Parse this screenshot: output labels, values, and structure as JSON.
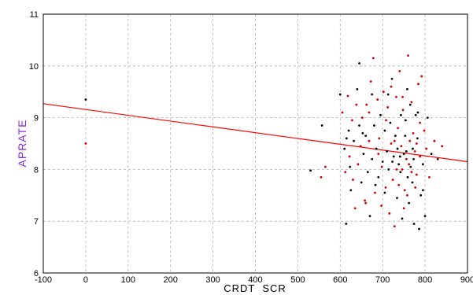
{
  "chart_data": {
    "type": "scatter",
    "xlabel": "CRDT  SCR",
    "ylabel": "APRATE",
    "xlim": [
      -100,
      900
    ],
    "ylim": [
      6,
      11
    ],
    "xticks": [
      -100,
      0,
      100,
      200,
      300,
      400,
      500,
      600,
      700,
      800,
      900
    ],
    "yticks": [
      6,
      7,
      8,
      9,
      10,
      11
    ],
    "grid": true,
    "colors": {
      "points": "#000000",
      "point_highlight": "#cc0000",
      "fit_line": "#ff0000",
      "grid": "#b0b0b0",
      "ylabel": "#8a2be2"
    },
    "fit_line": {
      "x": [
        -100,
        900
      ],
      "y": [
        9.27,
        8.15
      ]
    },
    "points": [
      {
        "x": 0,
        "y": 9.35
      },
      {
        "x": 0,
        "y": 8.5
      },
      {
        "x": 530,
        "y": 7.98
      },
      {
        "x": 555,
        "y": 7.85
      },
      {
        "x": 557,
        "y": 8.85
      },
      {
        "x": 565,
        "y": 8.05
      },
      {
        "x": 600,
        "y": 9.45
      },
      {
        "x": 605,
        "y": 9.1
      },
      {
        "x": 610,
        "y": 8.4
      },
      {
        "x": 612,
        "y": 7.95
      },
      {
        "x": 614,
        "y": 6.95
      },
      {
        "x": 618,
        "y": 9.42
      },
      {
        "x": 620,
        "y": 8.75
      },
      {
        "x": 622,
        "y": 8.25
      },
      {
        "x": 625,
        "y": 7.6
      },
      {
        "x": 628,
        "y": 8.95
      },
      {
        "x": 632,
        "y": 8.55
      },
      {
        "x": 635,
        "y": 7.25
      },
      {
        "x": 640,
        "y": 9.55
      },
      {
        "x": 642,
        "y": 8.1
      },
      {
        "x": 645,
        "y": 10.05
      },
      {
        "x": 648,
        "y": 8.45
      },
      {
        "x": 650,
        "y": 7.75
      },
      {
        "x": 652,
        "y": 9.0
      },
      {
        "x": 655,
        "y": 8.3
      },
      {
        "x": 658,
        "y": 7.4
      },
      {
        "x": 660,
        "y": 8.65
      },
      {
        "x": 662,
        "y": 9.25
      },
      {
        "x": 665,
        "y": 7.95
      },
      {
        "x": 668,
        "y": 8.55
      },
      {
        "x": 670,
        "y": 7.1
      },
      {
        "x": 672,
        "y": 9.7
      },
      {
        "x": 675,
        "y": 8.2
      },
      {
        "x": 678,
        "y": 10.15
      },
      {
        "x": 680,
        "y": 8.85
      },
      {
        "x": 682,
        "y": 7.55
      },
      {
        "x": 685,
        "y": 8.4
      },
      {
        "x": 688,
        "y": 9.35
      },
      {
        "x": 690,
        "y": 7.85
      },
      {
        "x": 692,
        "y": 8.6
      },
      {
        "x": 695,
        "y": 9.05
      },
      {
        "x": 697,
        "y": 7.3
      },
      {
        "x": 700,
        "y": 8.15
      },
      {
        "x": 702,
        "y": 9.5
      },
      {
        "x": 705,
        "y": 8.75
      },
      {
        "x": 707,
        "y": 7.65
      },
      {
        "x": 710,
        "y": 8.35
      },
      {
        "x": 712,
        "y": 9.2
      },
      {
        "x": 714,
        "y": 8.0
      },
      {
        "x": 716,
        "y": 7.15
      },
      {
        "x": 718,
        "y": 8.9
      },
      {
        "x": 720,
        "y": 8.5
      },
      {
        "x": 722,
        "y": 9.75
      },
      {
        "x": 724,
        "y": 7.8
      },
      {
        "x": 726,
        "y": 8.25
      },
      {
        "x": 728,
        "y": 6.9
      },
      {
        "x": 730,
        "y": 8.65
      },
      {
        "x": 732,
        "y": 9.4
      },
      {
        "x": 734,
        "y": 7.45
      },
      {
        "x": 736,
        "y": 8.8
      },
      {
        "x": 738,
        "y": 8.1
      },
      {
        "x": 740,
        "y": 9.9
      },
      {
        "x": 742,
        "y": 7.95
      },
      {
        "x": 744,
        "y": 8.45
      },
      {
        "x": 746,
        "y": 7.05
      },
      {
        "x": 748,
        "y": 9.15
      },
      {
        "x": 750,
        "y": 8.3
      },
      {
        "x": 752,
        "y": 7.6
      },
      {
        "x": 754,
        "y": 8.95
      },
      {
        "x": 756,
        "y": 8.2
      },
      {
        "x": 758,
        "y": 9.55
      },
      {
        "x": 760,
        "y": 10.2
      },
      {
        "x": 762,
        "y": 7.35
      },
      {
        "x": 764,
        "y": 8.55
      },
      {
        "x": 766,
        "y": 8.05
      },
      {
        "x": 768,
        "y": 9.3
      },
      {
        "x": 770,
        "y": 7.75
      },
      {
        "x": 772,
        "y": 8.7
      },
      {
        "x": 774,
        "y": 6.95
      },
      {
        "x": 776,
        "y": 8.35
      },
      {
        "x": 778,
        "y": 9.05
      },
      {
        "x": 780,
        "y": 7.9
      },
      {
        "x": 782,
        "y": 8.6
      },
      {
        "x": 784,
        "y": 9.65
      },
      {
        "x": 786,
        "y": 6.85
      },
      {
        "x": 788,
        "y": 8.25
      },
      {
        "x": 790,
        "y": 7.5
      },
      {
        "x": 792,
        "y": 9.8
      },
      {
        "x": 795,
        "y": 8.1
      },
      {
        "x": 798,
        "y": 8.75
      },
      {
        "x": 800,
        "y": 7.1
      },
      {
        "x": 803,
        "y": 8.4
      },
      {
        "x": 806,
        "y": 9.0
      },
      {
        "x": 810,
        "y": 7.85
      },
      {
        "x": 815,
        "y": 8.3
      },
      {
        "x": 822,
        "y": 8.55
      },
      {
        "x": 830,
        "y": 8.2
      },
      {
        "x": 840,
        "y": 8.45
      },
      {
        "x": 615,
        "y": 8.6
      },
      {
        "x": 630,
        "y": 7.8
      },
      {
        "x": 645,
        "y": 8.85
      },
      {
        "x": 660,
        "y": 7.35
      },
      {
        "x": 675,
        "y": 9.45
      },
      {
        "x": 690,
        "y": 8.3
      },
      {
        "x": 705,
        "y": 7.55
      },
      {
        "x": 720,
        "y": 9.6
      },
      {
        "x": 735,
        "y": 8.4
      },
      {
        "x": 750,
        "y": 7.25
      },
      {
        "x": 765,
        "y": 9.25
      },
      {
        "x": 780,
        "y": 8.5
      },
      {
        "x": 795,
        "y": 7.6
      },
      {
        "x": 708,
        "y": 8.95
      },
      {
        "x": 723,
        "y": 8.15
      },
      {
        "x": 738,
        "y": 7.7
      },
      {
        "x": 753,
        "y": 8.65
      },
      {
        "x": 768,
        "y": 7.95
      },
      {
        "x": 783,
        "y": 9.1
      },
      {
        "x": 698,
        "y": 8.05
      },
      {
        "x": 713,
        "y": 9.45
      },
      {
        "x": 728,
        "y": 8.55
      },
      {
        "x": 743,
        "y": 9.05
      },
      {
        "x": 758,
        "y": 7.5
      },
      {
        "x": 773,
        "y": 8.2
      },
      {
        "x": 788,
        "y": 8.9
      },
      {
        "x": 683,
        "y": 7.7
      },
      {
        "x": 668,
        "y": 9.1
      },
      {
        "x": 653,
        "y": 8.7
      },
      {
        "x": 638,
        "y": 9.25
      },
      {
        "x": 623,
        "y": 8.05
      },
      {
        "x": 746,
        "y": 8.0
      },
      {
        "x": 756,
        "y": 8.35
      },
      {
        "x": 762,
        "y": 8.1
      },
      {
        "x": 741,
        "y": 8.25
      },
      {
        "x": 733,
        "y": 8.0
      },
      {
        "x": 771,
        "y": 8.4
      },
      {
        "x": 777,
        "y": 7.65
      },
      {
        "x": 759,
        "y": 7.85
      },
      {
        "x": 747,
        "y": 9.4
      }
    ]
  }
}
